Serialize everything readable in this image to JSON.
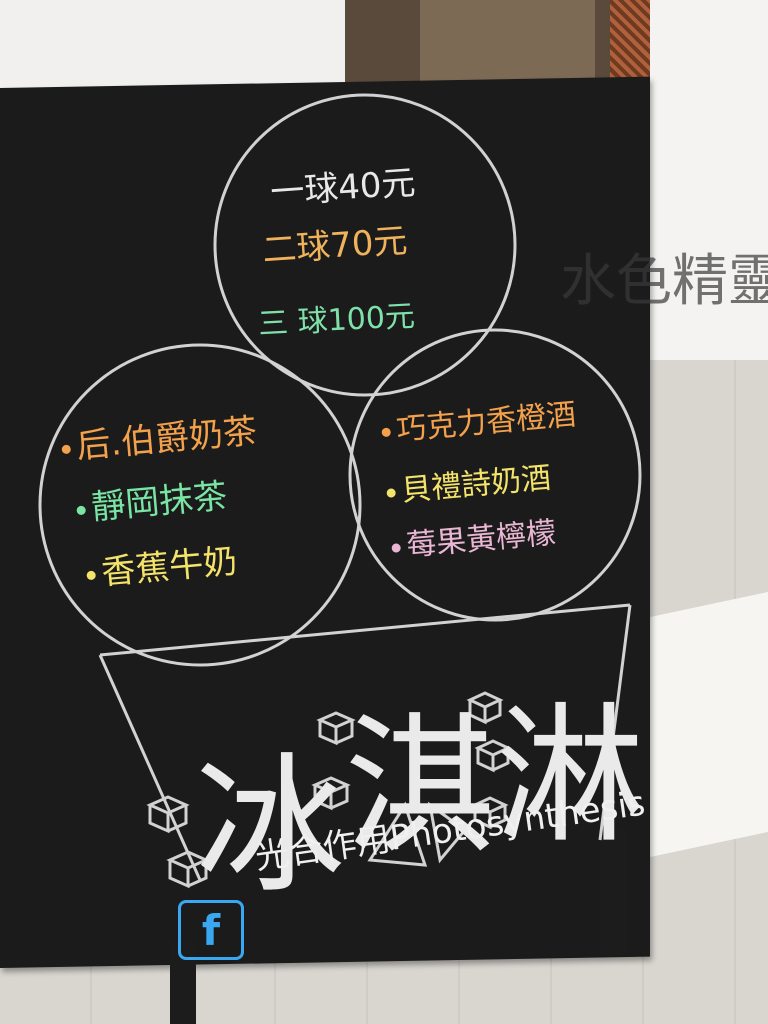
{
  "prices": {
    "one": "一球40元",
    "two": "二球70元",
    "three": "三 球100元"
  },
  "flavors_left": [
    "后.伯爵奶茶",
    "靜岡抹茶",
    "香蕉牛奶"
  ],
  "flavors_right": [
    "巧克力香橙酒",
    "貝禮詩奶酒",
    "莓果黃檸檬"
  ],
  "title_chars": [
    "冰",
    "淇",
    "淋"
  ],
  "brand": "光合作用Photosynthesis",
  "social_icon": "f",
  "board_background_text": "水色精靈",
  "colors": {
    "chalkboard": "#1b1b1b",
    "chalk_white": "#e8e8e8",
    "orange": "#f3a14b",
    "green": "#79e4a4",
    "yellow": "#f3e36a",
    "pink": "#e9b6d4",
    "facebook_blue": "#3aa7f2"
  }
}
